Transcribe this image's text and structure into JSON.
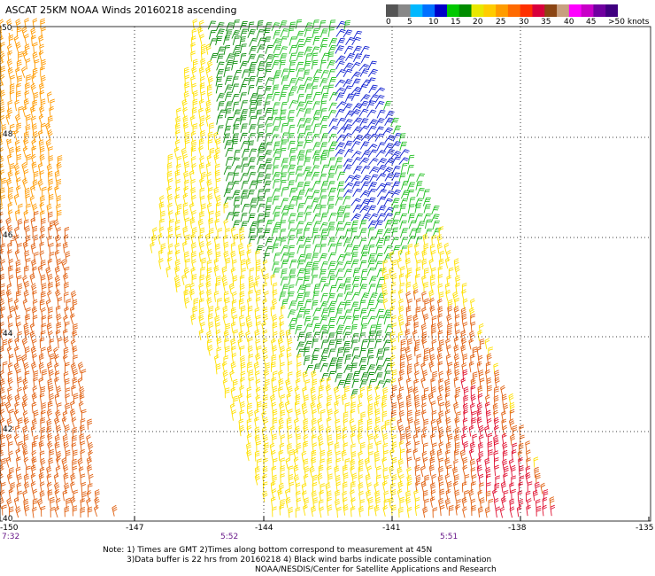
{
  "title": "ASCAT 25KM NOAA Winds 20160218 ascending",
  "colorbar": {
    "colors": [
      "#555555",
      "#888888",
      "#00b8ff",
      "#0070ff",
      "#0000c8",
      "#00c800",
      "#008c00",
      "#e8e800",
      "#ffcc00",
      "#ff9c00",
      "#ff6a00",
      "#ff3000",
      "#d8003c",
      "#8b4513",
      "#c8a080",
      "#ff00ff",
      "#c800c8",
      "#7000a0",
      "#400080"
    ],
    "labels": [
      "0",
      "5",
      "10",
      "15",
      "20",
      "25",
      "30",
      "35",
      "40",
      "45",
      ">50 knots"
    ]
  },
  "latitude_labels": [
    "50",
    "48",
    "46",
    "44",
    "42",
    "40"
  ],
  "longitude_labels": [
    "-150",
    "-147",
    "-144",
    "-141",
    "-138",
    "-135"
  ],
  "time_labels": [
    "7:32",
    "5:52",
    "5:51"
  ],
  "notes": [
    "Note: 1) Times are GMT 2)Times along bottom correspond to measurement at 45N",
    "3)Data buffer is 22 hrs from 20160218 4) Black wind barbs indicate possible contamination",
    "NOAA/NESDIS/Center for Satellite Applications and Research"
  ],
  "wind_colors": {
    "green_dark": "#0a8c0a",
    "green": "#22c022",
    "blue": "#1020d0",
    "yellow": "#ffe000",
    "orange": "#ff9a00",
    "dark_orange": "#e06010",
    "red": "#e01030"
  }
}
